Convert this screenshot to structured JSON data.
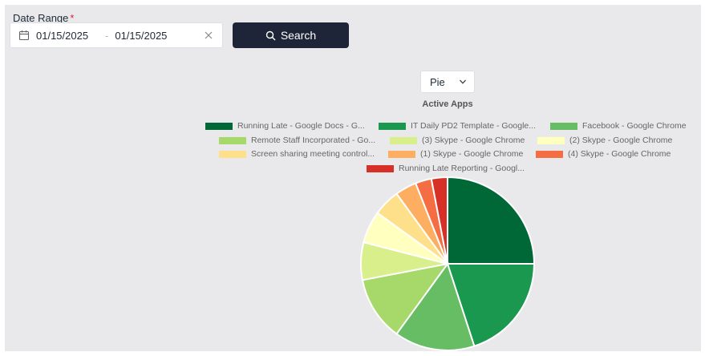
{
  "filters": {
    "date_range_label": "Date Range",
    "required_mark": "*",
    "start_date": "01/15/2025",
    "separator": "-",
    "end_date": "01/15/2025",
    "calendar_icon": "calendar-icon",
    "clear_icon": "close-icon"
  },
  "search_button": {
    "label": "Search",
    "icon": "search-icon"
  },
  "chart_type_select": {
    "value": "Pie",
    "icon": "chevron-down-icon"
  },
  "chart_data": {
    "type": "pie",
    "title": "Active Apps",
    "legend_position": "top",
    "slices": [
      {
        "label": "Running Late - Google Docs - G...",
        "value": 25,
        "color": "#006837"
      },
      {
        "label": "IT Daily PD2 Template - Google...",
        "value": 20,
        "color": "#1a9850"
      },
      {
        "label": "Facebook - Google Chrome",
        "value": 15,
        "color": "#66bd63"
      },
      {
        "label": "Remote Staff Incorporated - Go...",
        "value": 12,
        "color": "#a6d96a"
      },
      {
        "label": "(3) Skype - Google Chrome",
        "value": 7,
        "color": "#d9ef8b"
      },
      {
        "label": "(2) Skype - Google Chrome",
        "value": 6,
        "color": "#ffffbf"
      },
      {
        "label": "Screen sharing meeting control...",
        "value": 5,
        "color": "#fee08b"
      },
      {
        "label": "(1) Skype - Google Chrome",
        "value": 4,
        "color": "#fdae61"
      },
      {
        "label": "(4) Skype - Google Chrome",
        "value": 3,
        "color": "#f46d43"
      },
      {
        "label": "Running Late Reporting - Googl...",
        "value": 3,
        "color": "#d73027"
      }
    ]
  }
}
